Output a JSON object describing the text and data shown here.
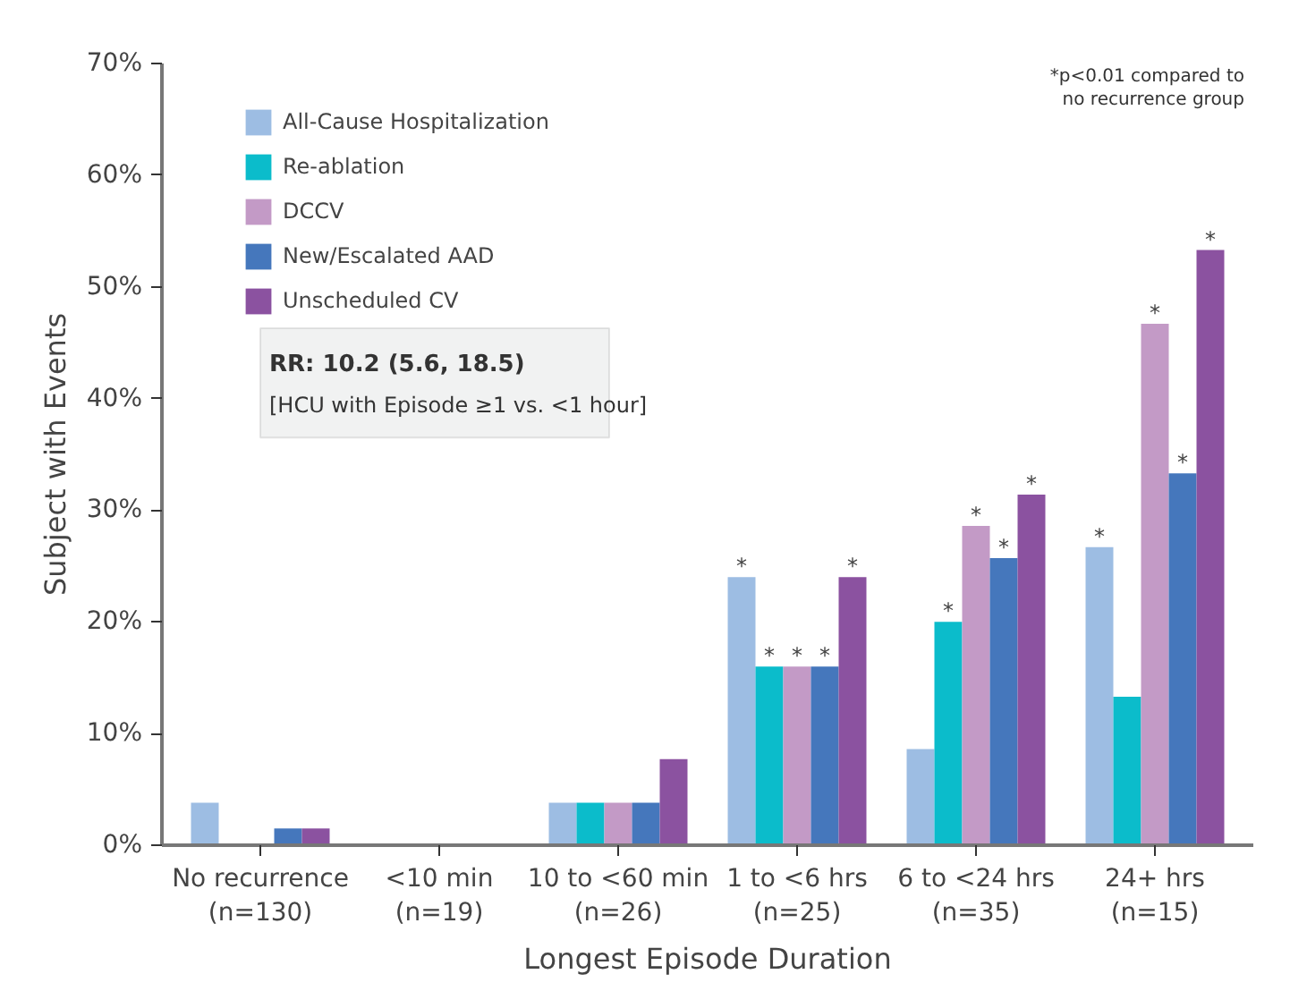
{
  "chart_data": {
    "type": "bar",
    "xlabel": "Longest Episode Duration",
    "ylabel": "Subject with Events",
    "categories": [
      "No recurrence\n(n=130)",
      "<10 min\n(n=19)",
      "10 to <60 min\n(n=26)",
      "1 to <6 hrs\n(n=25)",
      "6 to <24 hrs\n(n=35)",
      "24+ hrs\n(n=15)"
    ],
    "series": [
      {
        "name": "All-Cause Hospitalization",
        "color": "#9dbde3",
        "values": [
          3.8,
          0,
          3.8,
          24,
          8.6,
          26.7
        ],
        "value_labels": [
          null,
          null,
          null,
          "*",
          null,
          "*"
        ]
      },
      {
        "name": "Re-ablation",
        "color": "#0bbccb",
        "values": [
          0,
          0,
          3.8,
          16,
          20,
          13.3
        ],
        "value_labels": [
          null,
          null,
          null,
          "*",
          "*",
          null
        ]
      },
      {
        "name": "DCCV",
        "color": "#c39ac6",
        "values": [
          0,
          0,
          3.8,
          16,
          28.6,
          46.7
        ],
        "value_labels": [
          null,
          null,
          null,
          "*",
          "*",
          "*"
        ]
      },
      {
        "name": "New/Escalated AAD",
        "color": "#4577bc",
        "values": [
          1.5,
          0,
          3.8,
          16,
          25.7,
          33.3
        ],
        "value_labels": [
          null,
          null,
          null,
          "*",
          "*",
          "*"
        ]
      },
      {
        "name": "Unscheduled CV",
        "color": "#8b52a0",
        "values": [
          1.5,
          0,
          7.7,
          24,
          31.4,
          53.3
        ],
        "value_labels": [
          null,
          null,
          null,
          "*",
          "*",
          "*"
        ]
      }
    ],
    "ylim": [
      0,
      70
    ],
    "yticks": [
      {
        "value": 0,
        "label": "0%"
      },
      {
        "value": 10,
        "label": "10%"
      },
      {
        "value": 20,
        "label": "20%"
      },
      {
        "value": 30,
        "label": "30%"
      },
      {
        "value": 40,
        "label": "40%"
      },
      {
        "value": 50,
        "label": "50%"
      },
      {
        "value": 60,
        "label": "60%"
      },
      {
        "value": 70,
        "label": "70%"
      }
    ],
    "grid": false,
    "legend": "top left",
    "annotations": [
      "RR: 10.2 (5.6, 18.5)",
      "[HCU with Episode ≥1 vs. <1 hour]",
      "*p<0.01 compared to\nno recurrence group"
    ]
  }
}
